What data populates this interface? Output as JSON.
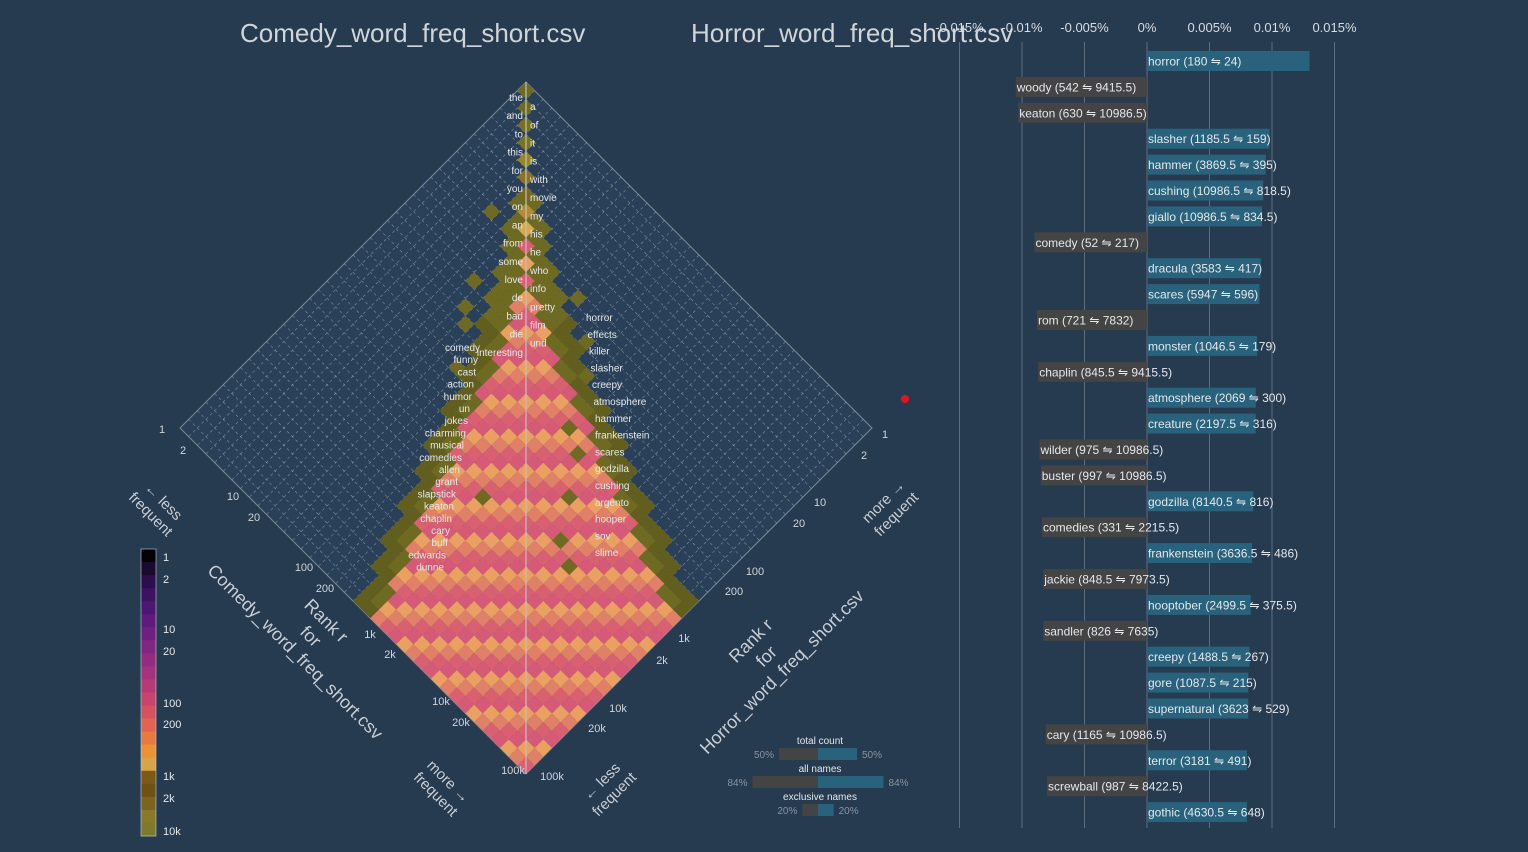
{
  "titles": {
    "left": "Comedy_word_freq_short.csv",
    "right": "Horror_word_freq_short.csv"
  },
  "colors": {
    "background": "#263a50",
    "grid": "#c8ced4",
    "horror_bar": "#28627c",
    "comedy_bar": "#454444",
    "marker": "#e8121d"
  },
  "diamond": {
    "left_axis_title": [
      "Rank r",
      "for",
      "Comedy_word_freq_short.csv"
    ],
    "right_axis_title": [
      "Rank r",
      "for",
      "Horror_word_freq_short.csv"
    ],
    "left_ticks": [
      "1",
      "2",
      "10",
      "20",
      "100",
      "200",
      "1k",
      "2k",
      "10k",
      "20k",
      "100k"
    ],
    "right_ticks": [
      "1",
      "2",
      "10",
      "20",
      "100",
      "200",
      "1k",
      "2k",
      "10k",
      "20k",
      "100k"
    ],
    "corner_labels": {
      "top_left": [
        "← less",
        "frequent"
      ],
      "top_right": [
        "more →",
        "frequent"
      ],
      "bottom_left": [
        "more →",
        "frequent"
      ],
      "bottom_right": [
        "← less",
        "frequent"
      ]
    },
    "center_words": [
      "the",
      "a",
      "and",
      "of",
      "to",
      "it",
      "this",
      "is",
      "for",
      "with",
      "you",
      "movie",
      "on",
      "my",
      "an",
      "his",
      "from",
      "he",
      "some",
      "who",
      "love",
      "info",
      "de",
      "pretty",
      "bad",
      "film",
      "die",
      "und",
      "interesting"
    ],
    "left_words": [
      "comedy",
      "funny",
      "cast",
      "action",
      "humor",
      "un",
      "jokes",
      "charming",
      "musical",
      "comedies",
      "allen",
      "grant",
      "slapstick",
      "keaton",
      "chaplin",
      "cary",
      "buff",
      "edwards",
      "dunne"
    ],
    "right_words": [
      "horror",
      "effects",
      "killer",
      "slasher",
      "creepy",
      "atmosphere",
      "hammer",
      "frankenstein",
      "scares",
      "godzilla",
      "cushing",
      "argento",
      "hooper",
      "sov",
      "slime"
    ]
  },
  "colorbar": {
    "labels": [
      "1",
      "2",
      "10",
      "20",
      "100",
      "200",
      "1k",
      "2k",
      "10k"
    ]
  },
  "balance": {
    "total_count": {
      "label": "total count",
      "left": "50%",
      "right": "50%",
      "left_value": 50,
      "right_value": 50
    },
    "all_names": {
      "label": "all names",
      "left": "84%",
      "right": "84%",
      "left_value": 84,
      "right_value": 84
    },
    "exclusive_names": {
      "label": "exclusive names",
      "left": "20%",
      "right": "20%",
      "left_value": 20,
      "right_value": 20
    }
  },
  "chart_data": {
    "type": "bar",
    "orientation": "horizontal",
    "x_ticks": [
      "-0.015%",
      "-0.01%",
      "-0.005%",
      "0%",
      "0.005%",
      "0.01%",
      "0.015%"
    ],
    "x_tick_values": [
      -0.015,
      -0.01,
      -0.005,
      0,
      0.005,
      0.01,
      0.015
    ],
    "xlim": [
      -0.015,
      0.015
    ],
    "grid": true,
    "bars": [
      {
        "label": "horror (180 ⇋ 24)",
        "value": 0.013
      },
      {
        "label": "woody (542 ⇋ 9415.5)",
        "value": -0.0105
      },
      {
        "label": "keaton (630 ⇋ 10986.5)",
        "value": -0.0103
      },
      {
        "label": "slasher (1185.5 ⇋ 159)",
        "value": 0.0098
      },
      {
        "label": "hammer (3869.5 ⇋ 395)",
        "value": 0.0095
      },
      {
        "label": "cushing (10986.5 ⇋ 818.5)",
        "value": 0.0093
      },
      {
        "label": "giallo (10986.5 ⇋ 834.5)",
        "value": 0.0092
      },
      {
        "label": "comedy (52 ⇋ 217)",
        "value": -0.009
      },
      {
        "label": "dracula (3583 ⇋ 417)",
        "value": 0.0091
      },
      {
        "label": "scares (5947 ⇋ 596)",
        "value": 0.009
      },
      {
        "label": "rom (721 ⇋ 7832)",
        "value": -0.0088
      },
      {
        "label": "monster (1046.5 ⇋ 179)",
        "value": 0.0088
      },
      {
        "label": "chaplin (845.5 ⇋ 9415.5)",
        "value": -0.0087
      },
      {
        "label": "atmosphere (2069 ⇋ 300)",
        "value": 0.0087
      },
      {
        "label": "creature (2197.5 ⇋ 316)",
        "value": 0.0087
      },
      {
        "label": "wilder (975 ⇋ 10986.5)",
        "value": -0.0086
      },
      {
        "label": "buster (997 ⇋ 10986.5)",
        "value": -0.0085
      },
      {
        "label": "godzilla (8140.5 ⇋ 816)",
        "value": 0.0085
      },
      {
        "label": "comedies (331 ⇋ 2215.5)",
        "value": -0.0084
      },
      {
        "label": "frankenstein (3636.5 ⇋ 486)",
        "value": 0.0084
      },
      {
        "label": "jackie (848.5 ⇋ 7973.5)",
        "value": -0.0083
      },
      {
        "label": "hooptober (2499.5 ⇋ 375.5)",
        "value": 0.0083
      },
      {
        "label": "sandler (826 ⇋ 7635)",
        "value": -0.0083
      },
      {
        "label": "creepy (1488.5 ⇋ 267)",
        "value": 0.0082
      },
      {
        "label": "gore (1087.5 ⇋ 215)",
        "value": 0.0081
      },
      {
        "label": "supernatural (3623 ⇋ 529)",
        "value": 0.0081
      },
      {
        "label": "cary (1165 ⇋ 10986.5)",
        "value": -0.0081
      },
      {
        "label": "terror (3181 ⇋ 491)",
        "value": 0.008
      },
      {
        "label": "screwball (987 ⇋ 8422.5)",
        "value": -0.008
      },
      {
        "label": "gothic (4630.5 ⇋ 648)",
        "value": 0.008
      }
    ]
  }
}
